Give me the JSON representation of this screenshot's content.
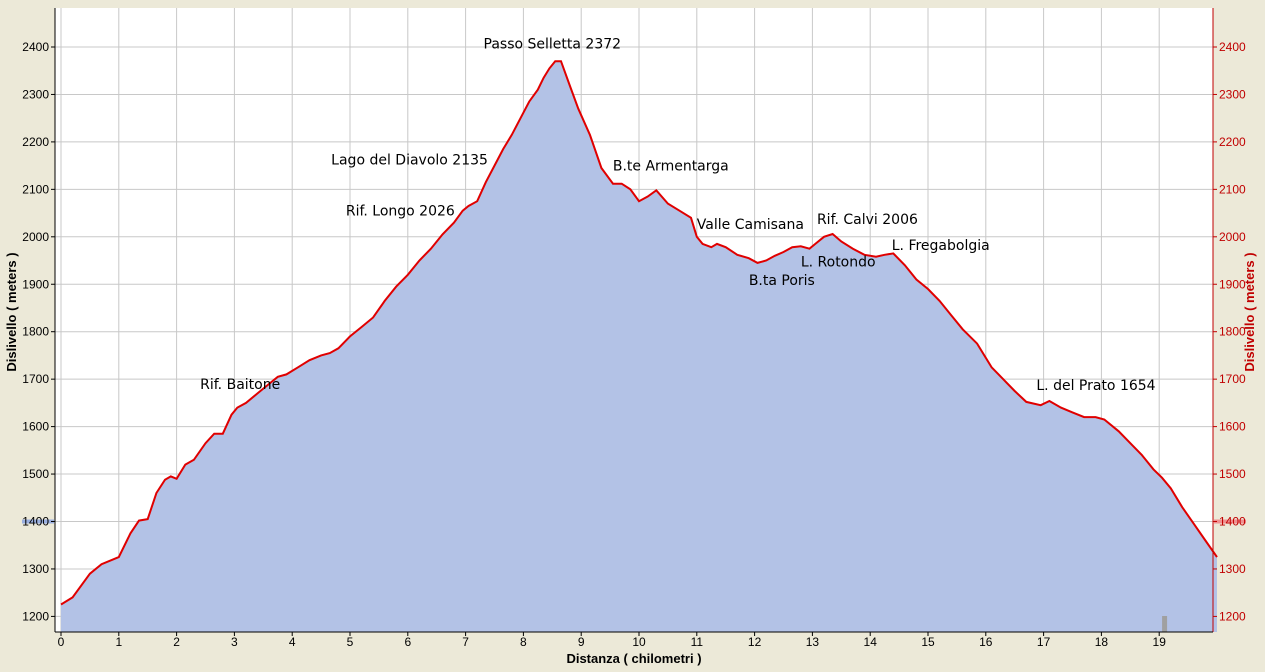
{
  "chart_data": {
    "type": "area",
    "xlabel": "Distanza ( chilometri )",
    "ylabel_left": "Dislivello ( meters )",
    "ylabel_right": "Dislivello ( meters )",
    "xlim": [
      0,
      20
    ],
    "ylim": [
      1170,
      2460
    ],
    "x_ticks": [
      0,
      1,
      2,
      3,
      4,
      5,
      6,
      7,
      8,
      9,
      10,
      11,
      12,
      13,
      14,
      15,
      16,
      17,
      18,
      19
    ],
    "y_ticks": [
      1200,
      1300,
      1400,
      1500,
      1600,
      1700,
      1800,
      1900,
      2000,
      2100,
      2200,
      2300,
      2400
    ],
    "grid": true,
    "marker_elevation": 1400,
    "colors": {
      "fill": "#b3c2e6",
      "line": "#e00000",
      "right_axis": "#c00000",
      "grid": "#c8c8c8",
      "background": "#ffffff",
      "frame": "#ece9d8"
    },
    "series": [
      {
        "x": [
          0,
          0.2,
          0.5,
          0.7,
          1.0,
          1.2,
          1.35,
          1.5,
          1.65,
          1.8,
          1.9,
          2.0,
          2.15,
          2.3,
          2.5,
          2.65,
          2.8,
          2.95,
          3.05,
          3.2,
          3.4,
          3.6,
          3.75,
          3.9,
          4.1,
          4.3,
          4.5,
          4.65,
          4.8,
          5.0,
          5.2,
          5.4,
          5.6,
          5.8,
          6.0,
          6.2,
          6.4,
          6.6,
          6.8,
          6.95,
          7.05,
          7.2,
          7.35,
          7.5,
          7.65,
          7.8,
          7.95,
          8.1,
          8.25,
          8.35,
          8.45,
          8.55,
          8.65,
          8.8,
          8.95,
          9.15,
          9.35,
          9.55,
          9.7,
          9.85,
          10.0,
          10.15,
          10.3,
          10.5,
          10.7,
          10.9,
          11.0,
          11.1,
          11.25,
          11.35,
          11.5,
          11.7,
          11.9,
          12.05,
          12.2,
          12.35,
          12.5,
          12.65,
          12.8,
          12.95,
          13.05,
          13.2,
          13.35,
          13.5,
          13.7,
          13.9,
          14.1,
          14.25,
          14.4,
          14.6,
          14.8,
          15.0,
          15.2,
          15.4,
          15.6,
          15.85,
          16.1,
          16.3,
          16.5,
          16.7,
          16.95,
          17.1,
          17.3,
          17.5,
          17.7,
          17.9,
          18.05,
          18.3,
          18.5,
          18.7,
          18.9,
          19.05,
          19.2,
          19.4,
          19.6,
          19.8,
          20.0
        ],
        "y": [
          1225,
          1240,
          1290,
          1310,
          1325,
          1375,
          1402,
          1405,
          1460,
          1488,
          1495,
          1490,
          1520,
          1530,
          1565,
          1585,
          1585,
          1625,
          1640,
          1650,
          1670,
          1690,
          1705,
          1710,
          1725,
          1740,
          1750,
          1755,
          1765,
          1790,
          1810,
          1830,
          1865,
          1895,
          1920,
          1950,
          1975,
          2005,
          2030,
          2055,
          2065,
          2075,
          2115,
          2150,
          2185,
          2215,
          2250,
          2285,
          2310,
          2335,
          2355,
          2370,
          2370,
          2320,
          2270,
          2215,
          2145,
          2112,
          2112,
          2100,
          2075,
          2085,
          2098,
          2070,
          2055,
          2040,
          2000,
          1985,
          1978,
          1985,
          1978,
          1962,
          1955,
          1945,
          1950,
          1960,
          1968,
          1978,
          1980,
          1975,
          1985,
          2000,
          2006,
          1990,
          1975,
          1962,
          1958,
          1962,
          1965,
          1940,
          1910,
          1890,
          1865,
          1835,
          1805,
          1775,
          1725,
          1700,
          1675,
          1652,
          1645,
          1654,
          1640,
          1630,
          1620,
          1620,
          1615,
          1590,
          1565,
          1540,
          1510,
          1492,
          1470,
          1430,
          1395,
          1360,
          1325
        ]
      }
    ],
    "annotations": [
      {
        "text": "Rif. Baitone",
        "x": 3.1,
        "y": 1650
      },
      {
        "text": "Rif. Longo 2026",
        "x": 6.9,
        "y": 2026
      },
      {
        "text": "Lago del Diavolo 2135",
        "x": 7.3,
        "y": 2135
      },
      {
        "text": "Passo Selletta 2372",
        "x": 8.5,
        "y": 2372
      },
      {
        "text": "B.te Armentarga",
        "x": 9.6,
        "y": 2112
      },
      {
        "text": "Valle Camisana",
        "x": 11.0,
        "y": 2000
      },
      {
        "text": "B.ta Poris",
        "x": 11.9,
        "y": 1945
      },
      {
        "text": "L. Rotondo",
        "x": 12.8,
        "y": 1975
      },
      {
        "text": "Rif. Calvi 2006",
        "x": 13.2,
        "y": 2006
      },
      {
        "text": "L. Fregabolgia",
        "x": 14.2,
        "y": 1962
      },
      {
        "text": "L. del Prato 1654",
        "x": 17.1,
        "y": 1654
      }
    ]
  }
}
